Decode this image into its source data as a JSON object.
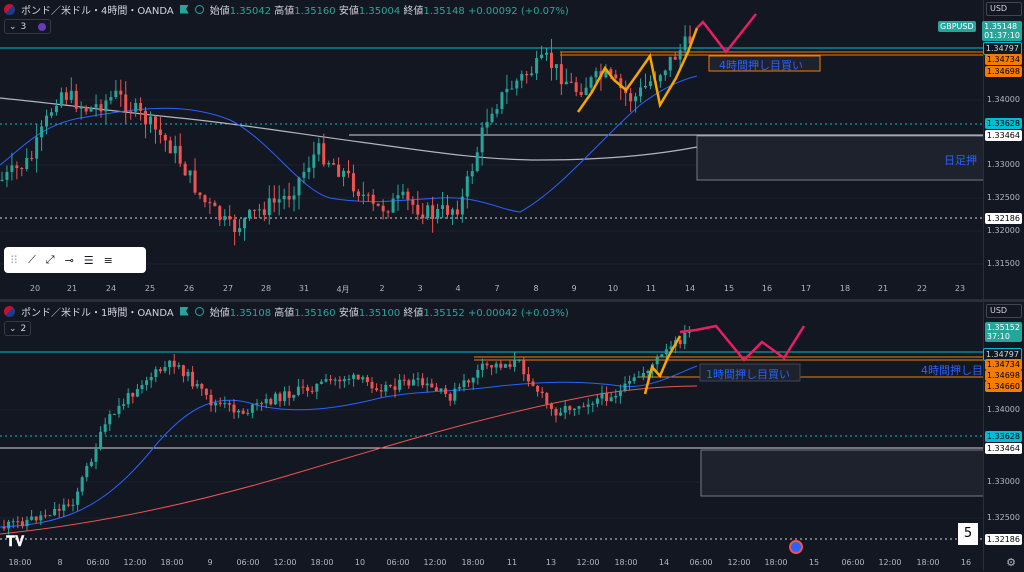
{
  "top": {
    "title": "ポンド／米ドル・4時間・OANDA",
    "ohlc": [
      {
        "k": "始値",
        "v": "1.35042"
      },
      {
        "k": "高値",
        "v": "1.35160"
      },
      {
        "k": "安値",
        "v": "1.35004"
      },
      {
        "k": "終値",
        "v": "1.35148"
      },
      {
        "k": "",
        "v": "+0.00092 (+0.07%)"
      }
    ],
    "indicator_count": "3",
    "currency": "USD",
    "symbol_badge": "GBPUSD",
    "last_price": "1.35148",
    "countdown": "01:37:10",
    "price_labels": [
      "1.34000",
      "1.33000",
      "1.32500",
      "1.32000",
      "1.31500"
    ],
    "price_badges": [
      "1.34797",
      "1.34734",
      "1.34698",
      "1.33628",
      "1.33464",
      "1.32186"
    ],
    "time_labels": [
      "20",
      "21",
      "24",
      "25",
      "26",
      "27",
      "28",
      "31",
      "4月",
      "2",
      "3",
      "4",
      "7",
      "8",
      "9",
      "10",
      "11",
      "14",
      "15",
      "16",
      "17",
      "18",
      "21",
      "22",
      "23"
    ],
    "zone_label": "4時間押し目買い",
    "daily_zone_label": "日足押"
  },
  "bottom": {
    "title": "ポンド／米ドル・1時間・OANDA",
    "ohlc": [
      {
        "k": "始値",
        "v": "1.35108"
      },
      {
        "k": "高値",
        "v": "1.35160"
      },
      {
        "k": "安値",
        "v": "1.35100"
      },
      {
        "k": "終値",
        "v": "1.35152"
      },
      {
        "k": "",
        "v": "+0.00042 (+0.03%)"
      }
    ],
    "indicator_count": "2",
    "currency": "USD",
    "last_price": "1.35152",
    "countdown": "37:10",
    "price_labels": [
      "1.34000",
      "1.33000",
      "1.32500"
    ],
    "price_badges": [
      "1.34797",
      "1.34734",
      "1.34698",
      "1.34660",
      "1.33628",
      "1.33464",
      "1.32186"
    ],
    "time_labels": [
      "18:00",
      "8",
      "06:00",
      "12:00",
      "18:00",
      "9",
      "06:00",
      "12:00",
      "18:00",
      "10",
      "06:00",
      "12:00",
      "18:00",
      "11",
      "13",
      "12:00",
      "18:00",
      "14",
      "06:00",
      "12:00",
      "18:00",
      "15",
      "06:00",
      "12:00",
      "18:00",
      "16"
    ],
    "zone_label_1h": "1時間押し目買い",
    "zone_label_4h": "4時間押し目",
    "page_number": "5"
  },
  "colors": {
    "up": "#26a69a",
    "down": "#ef5350",
    "projection": "#e91e63",
    "wave": "#f7a600",
    "zone_line": "#f57c00",
    "hline": "#00bcd4",
    "ma_fast": "#2962ff",
    "ma_slow_top": "#b2b5be",
    "ma_slow_bottom": "#ef5350"
  },
  "icons": [
    "drag-handle-icon",
    "trend-line-icon",
    "ray-icon",
    "horizontal-line-icon",
    "fib-icon",
    "parallel-lines-icon"
  ]
}
